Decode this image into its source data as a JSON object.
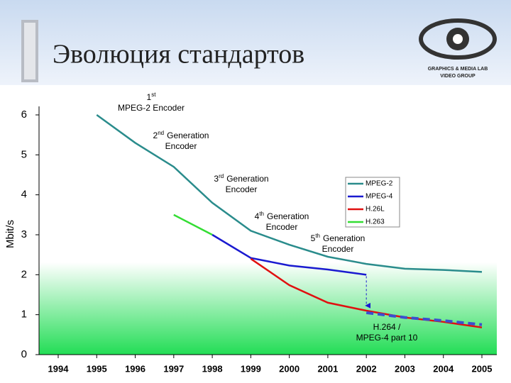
{
  "header": {
    "title": "Эволюция стандартов",
    "logo_lines": [
      "GRAPHICS & MEDIA LAB",
      "VIDEO GROUP"
    ]
  },
  "chart_data": {
    "type": "line",
    "y_label": "Mbit/s",
    "x": [
      1994,
      1995,
      1996,
      1997,
      1998,
      1999,
      2000,
      2001,
      2002,
      2003,
      2004,
      2005
    ],
    "xlim": [
      1994,
      2005
    ],
    "xticks": [
      1994,
      1995,
      1996,
      1997,
      1998,
      1999,
      2000,
      2001,
      2002,
      2003,
      2004,
      2005
    ],
    "ylim": [
      0,
      6
    ],
    "yticks": [
      0,
      1,
      2,
      3,
      4,
      5,
      6
    ],
    "series": [
      {
        "name": "MPEG-2",
        "color": "#2a8c8c",
        "values": [
          null,
          6.0,
          5.3,
          4.7,
          3.8,
          3.1,
          2.75,
          2.45,
          2.27,
          2.15,
          2.12,
          2.07
        ]
      },
      {
        "name": "MPEG-4",
        "color": "#1a1ad0",
        "values": [
          null,
          null,
          null,
          null,
          3.0,
          2.42,
          2.23,
          2.13,
          2.0,
          null,
          null,
          null
        ]
      },
      {
        "name": "H.26L",
        "color": "#e01010",
        "values": [
          null,
          null,
          null,
          null,
          null,
          2.4,
          1.74,
          1.3,
          1.1,
          0.93,
          0.82,
          0.68
        ]
      },
      {
        "name": "H.263",
        "color": "#33dd33",
        "values": [
          null,
          null,
          null,
          3.5,
          3.0,
          null,
          null,
          null,
          null,
          null,
          null,
          null
        ]
      },
      {
        "color": "#3a4fcf",
        "dashed": true,
        "in_legend": false,
        "values": [
          null,
          null,
          null,
          null,
          null,
          null,
          null,
          null,
          1.05,
          0.93,
          0.85,
          0.75
        ]
      }
    ],
    "legend": "right",
    "annotations": [
      {
        "num": "1",
        "sup": "st",
        "line2": "MPEG-2 Encoder"
      },
      {
        "num": "2",
        "sup": "nd",
        "rest": "Generation",
        "line2": "Encoder"
      },
      {
        "num": "3",
        "sup": "rd",
        "rest": "Generation",
        "line2": "Encoder"
      },
      {
        "num": "4",
        "sup": "th",
        "rest": "Generation",
        "line2": "Encoder"
      },
      {
        "num": "5",
        "sup": "th",
        "rest": "Generation",
        "line2": "Encoder"
      },
      {
        "rest": "H.264 /",
        "line2": "MPEG-4 part 10"
      }
    ]
  }
}
